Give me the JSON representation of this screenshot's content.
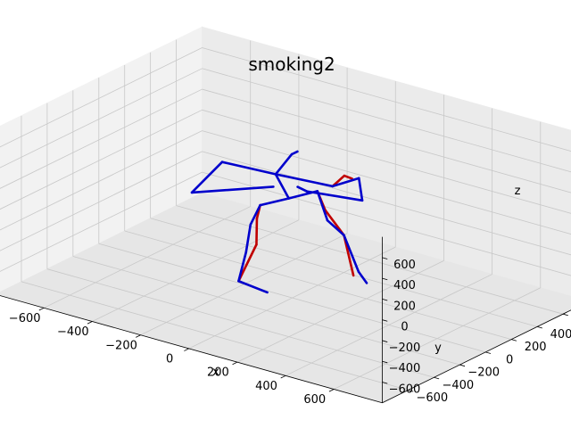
{
  "figure": {
    "title": "smoking2"
  },
  "chart_data": {
    "type": "scatter",
    "projection": "3d",
    "title": "smoking2",
    "xlabel": "x",
    "ylabel": "y",
    "zlabel": "z",
    "xlim": [
      -800,
      800
    ],
    "ylim": [
      -800,
      800
    ],
    "zlim": [
      -800,
      800
    ],
    "grid": true,
    "x_ticks": [
      -600,
      -400,
      -200,
      0,
      200,
      400,
      600
    ],
    "y_ticks": [
      -600,
      -400,
      -200,
      0,
      200,
      400,
      600
    ],
    "z_ticks": [
      -600,
      -400,
      -200,
      0,
      200,
      400,
      600
    ],
    "x_tick_labels": [
      "−600",
      "−400",
      "−200",
      "0",
      "200",
      "400",
      "600"
    ],
    "y_tick_labels": [
      "−600",
      "−400",
      "−200",
      "0",
      "200",
      "400",
      "600"
    ],
    "z_tick_labels": [
      "−600",
      "−400",
      "−200",
      "0",
      "200",
      "400",
      "600"
    ],
    "series": [
      {
        "color": "#c00000",
        "segments": [
          [
            [
              -49,
              -156,
              157
            ],
            [
              -59,
              -163,
              25
            ]
          ],
          [
            [
              -59,
              -163,
              25
            ],
            [
              -48,
              -187,
              -203
            ]
          ],
          [
            [
              -48,
              -187,
              -203
            ],
            [
              -92,
              -243,
              -550
            ]
          ],
          [
            [
              21,
              156,
              147
            ],
            [
              44,
              174,
              -33
            ]
          ],
          [
            [
              44,
              174,
              -33
            ],
            [
              127,
              163,
              -212
            ]
          ],
          [
            [
              127,
              163,
              -212
            ],
            [
              177,
              143,
              -556
            ]
          ],
          [
            [
              93,
              139,
              252
            ],
            [
              128,
              164,
              361
            ]
          ],
          [
            [
              128,
              164,
              361
            ],
            [
              147,
              188,
              331
            ]
          ]
        ]
      },
      {
        "color": "#0000cc",
        "segments": [
          [
            [
              -14,
              0,
              150
            ],
            [
              -49,
              -156,
              157
            ]
          ],
          [
            [
              -49,
              -156,
              157
            ],
            [
              -79,
              -175,
              -39
            ]
          ],
          [
            [
              -79,
              -175,
              -39
            ],
            [
              -82,
              -204,
              -289
            ]
          ],
          [
            [
              -82,
              -204,
              -289
            ],
            [
              -92,
              -243,
              -550
            ]
          ],
          [
            [
              -92,
              -243,
              -550
            ],
            [
              -2,
              -189,
              -633
            ]
          ],
          [
            [
              -14,
              0,
              150
            ],
            [
              21,
              156,
              147
            ]
          ],
          [
            [
              21,
              156,
              147
            ],
            [
              79,
              125,
              -78
            ]
          ],
          [
            [
              79,
              125,
              -78
            ],
            [
              127,
              163,
              -212
            ]
          ],
          [
            [
              127,
              163,
              -212
            ],
            [
              186,
              166,
              -528
            ]
          ],
          [
            [
              186,
              166,
              -528
            ],
            [
              235,
              137,
              -587
            ]
          ],
          [
            [
              -14,
              0,
              150
            ],
            [
              -52,
              -31,
              377
            ]
          ],
          [
            [
              -52,
              -31,
              377
            ],
            [
              8,
              -18,
              601
            ]
          ],
          [
            [
              8,
              -18,
              601
            ],
            [
              42,
              -38,
              662
            ]
          ],
          [
            [
              -52,
              -31,
              377
            ],
            [
              -199,
              -170,
              484
            ]
          ],
          [
            [
              -199,
              -170,
              484
            ],
            [
              -277,
              -259,
              193
            ]
          ],
          [
            [
              -277,
              -259,
              193
            ],
            [
              -88,
              19,
              202
            ]
          ],
          [
            [
              -52,
              -31,
              377
            ],
            [
              93,
              139,
              252
            ]
          ],
          [
            [
              93,
              139,
              252
            ],
            [
              159,
              219,
              324
            ]
          ],
          [
            [
              159,
              219,
              324
            ],
            [
              190,
              187,
              149
            ]
          ],
          [
            [
              190,
              187,
              149
            ],
            [
              14,
              87,
              183
            ]
          ],
          [
            [
              14,
              87,
              183
            ],
            [
              -7,
              55,
              232
            ]
          ]
        ]
      }
    ]
  }
}
